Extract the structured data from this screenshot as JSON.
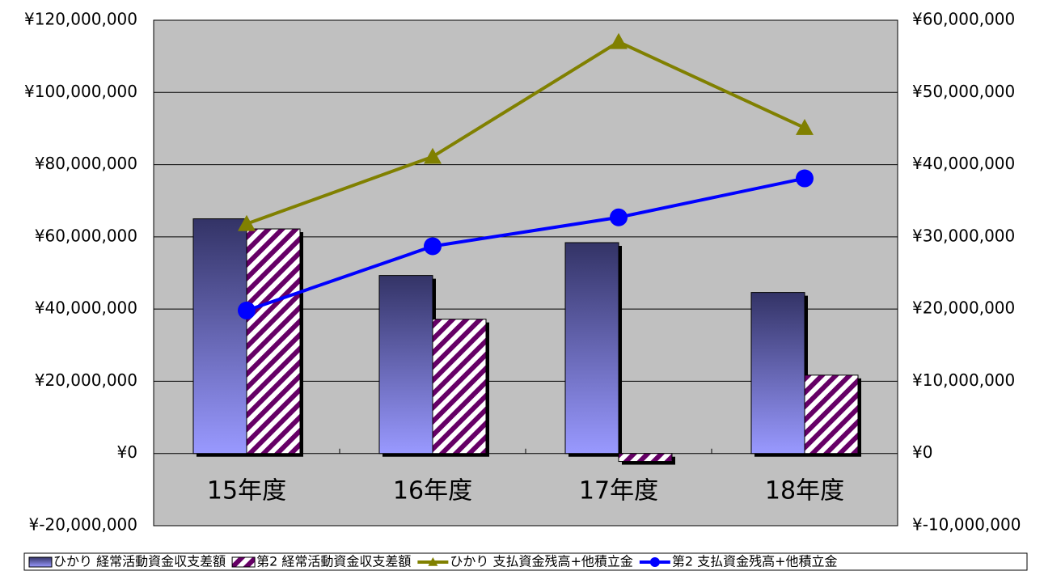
{
  "chart_data": {
    "type": "bar",
    "categories": [
      "15年度",
      "16年度",
      "17年度",
      "18年度"
    ],
    "series": [
      {
        "name": "ひかり 経常活動資金収支差額",
        "type": "bar",
        "color": "#9999ff",
        "fill": "gradient",
        "values": [
          65000000,
          49300000,
          58400000,
          44600000
        ]
      },
      {
        "name": "第2 経常活動資金収支差額",
        "type": "bar",
        "color": "#660066",
        "fill": "hatch",
        "values": [
          62200000,
          37200000,
          -2200000,
          21700000
        ]
      },
      {
        "name": "ひかり 支払資金残高+他積立金",
        "type": "line",
        "axis": "y2",
        "color": "#808000",
        "marker": "triangle",
        "values": [
          31800000,
          41100000,
          57000000,
          45100000
        ]
      },
      {
        "name": "第2 支払資金残高+他積立金",
        "type": "line",
        "axis": "y2",
        "color": "#0000ff",
        "marker": "circle",
        "values": [
          19800000,
          28700000,
          32700000,
          38100000
        ]
      }
    ],
    "ylim": [
      -20000000,
      120000000
    ],
    "yticks": [
      {
        "value": -20000000,
        "label": "¥-20,000,000"
      },
      {
        "value": 0,
        "label": "¥0"
      },
      {
        "value": 20000000,
        "label": "¥20,000,000"
      },
      {
        "value": 40000000,
        "label": "¥40,000,000"
      },
      {
        "value": 60000000,
        "label": "¥60,000,000"
      },
      {
        "value": 80000000,
        "label": "¥80,000,000"
      },
      {
        "value": 100000000,
        "label": "¥100,000,000"
      },
      {
        "value": 120000000,
        "label": "¥120,000,000"
      }
    ],
    "y2lim": [
      -10000000,
      60000000
    ],
    "y2ticks": [
      {
        "value": -10000000,
        "label": "¥-10,000,000"
      },
      {
        "value": 0,
        "label": "¥0"
      },
      {
        "value": 10000000,
        "label": "¥10,000,000"
      },
      {
        "value": 20000000,
        "label": "¥20,000,000"
      },
      {
        "value": 30000000,
        "label": "¥30,000,000"
      },
      {
        "value": 40000000,
        "label": "¥40,000,000"
      },
      {
        "value": 50000000,
        "label": "¥50,000,000"
      },
      {
        "value": 60000000,
        "label": "¥60,000,000"
      }
    ],
    "grid": true,
    "legend": "bottom"
  }
}
